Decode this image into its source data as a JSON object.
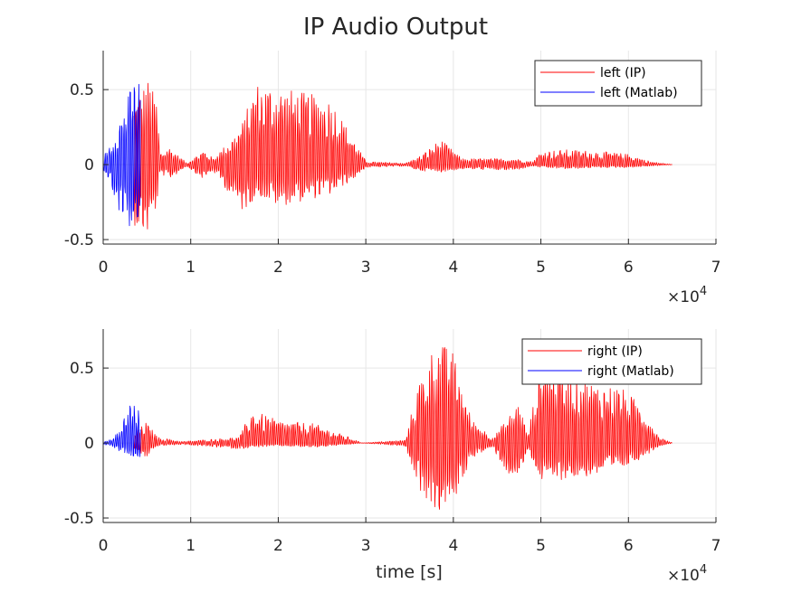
{
  "figure": {
    "title": "IP Audio Output",
    "background": "#ffffff"
  },
  "chart_data": [
    {
      "type": "line",
      "panel": "top",
      "title": "IP Audio Output",
      "xlabel": "",
      "ylabel": "",
      "xlim": [
        0,
        70000
      ],
      "ylim": [
        -0.53,
        0.76
      ],
      "x_ticks": [
        0,
        1,
        2,
        3,
        4,
        5,
        6,
        7
      ],
      "x_tick_labels": [
        "0",
        "1",
        "2",
        "3",
        "4",
        "5",
        "6",
        "7"
      ],
      "x_exponent_label": "×10",
      "x_exponent_power": "4",
      "y_ticks": [
        0.5,
        0,
        -0.5
      ],
      "y_tick_labels": [
        "0.5",
        "0",
        "-0.5"
      ],
      "grid": true,
      "legend_position": "top-right",
      "series": [
        {
          "name": "left (IP)",
          "color": "#ff0000",
          "x_range": [
            3500,
            65000
          ],
          "envelope": [
            {
              "x": 3500,
              "max": 0.42,
              "min": -0.4
            },
            {
              "x": 5000,
              "max": 0.58,
              "min": -0.48
            },
            {
              "x": 6000,
              "max": 0.45,
              "min": -0.3
            },
            {
              "x": 6500,
              "max": 0.08,
              "min": -0.06
            },
            {
              "x": 7500,
              "max": 0.12,
              "min": -0.1
            },
            {
              "x": 9500,
              "max": 0.01,
              "min": -0.01
            },
            {
              "x": 11500,
              "max": 0.1,
              "min": -0.1
            },
            {
              "x": 12500,
              "max": 0.04,
              "min": -0.04
            },
            {
              "x": 15000,
              "max": 0.2,
              "min": -0.24
            },
            {
              "x": 16000,
              "max": 0.3,
              "min": -0.32
            },
            {
              "x": 17500,
              "max": 0.55,
              "min": -0.2
            },
            {
              "x": 20000,
              "max": 0.52,
              "min": -0.28
            },
            {
              "x": 23000,
              "max": 0.48,
              "min": -0.24
            },
            {
              "x": 26000,
              "max": 0.44,
              "min": -0.2
            },
            {
              "x": 28500,
              "max": 0.18,
              "min": -0.1
            },
            {
              "x": 30000,
              "max": 0.02,
              "min": -0.02
            },
            {
              "x": 34500,
              "max": 0.01,
              "min": -0.01
            },
            {
              "x": 36000,
              "max": 0.05,
              "min": -0.04
            },
            {
              "x": 38500,
              "max": 0.17,
              "min": -0.05
            },
            {
              "x": 41000,
              "max": 0.04,
              "min": -0.03
            },
            {
              "x": 47000,
              "max": 0.04,
              "min": -0.04
            },
            {
              "x": 49000,
              "max": 0.02,
              "min": -0.01
            },
            {
              "x": 50000,
              "max": 0.09,
              "min": -0.02
            },
            {
              "x": 53000,
              "max": 0.1,
              "min": -0.03
            },
            {
              "x": 56500,
              "max": 0.09,
              "min": -0.02
            },
            {
              "x": 60000,
              "max": 0.07,
              "min": -0.02
            },
            {
              "x": 62500,
              "max": 0.02,
              "min": -0.01
            },
            {
              "x": 65000,
              "max": 0.0,
              "min": 0.0
            }
          ]
        },
        {
          "name": "left (Matlab)",
          "color": "#0000ff",
          "x_range": [
            0,
            4200
          ],
          "envelope": [
            {
              "x": 0,
              "max": 0.05,
              "min": -0.05
            },
            {
              "x": 800,
              "max": 0.15,
              "min": -0.12
            },
            {
              "x": 1500,
              "max": 0.25,
              "min": -0.28
            },
            {
              "x": 2500,
              "max": 0.4,
              "min": -0.38
            },
            {
              "x": 3300,
              "max": 0.55,
              "min": -0.45
            },
            {
              "x": 4000,
              "max": 0.58,
              "min": -0.42
            }
          ]
        }
      ]
    },
    {
      "type": "line",
      "panel": "bottom",
      "xlabel": "time [s]",
      "ylabel": "",
      "xlim": [
        0,
        70000
      ],
      "ylim": [
        -0.53,
        0.76
      ],
      "x_ticks": [
        0,
        1,
        2,
        3,
        4,
        5,
        6,
        7
      ],
      "x_tick_labels": [
        "0",
        "1",
        "2",
        "3",
        "4",
        "5",
        "6",
        "7"
      ],
      "x_exponent_label": "×10",
      "x_exponent_power": "4",
      "y_ticks": [
        0.5,
        0,
        -0.5
      ],
      "y_tick_labels": [
        "0.5",
        "0",
        "-0.5"
      ],
      "grid": true,
      "legend_position": "top-right",
      "series": [
        {
          "name": "right (IP)",
          "color": "#ff0000",
          "x_range": [
            3500,
            65000
          ],
          "envelope": [
            {
              "x": 3500,
              "max": 0.06,
              "min": -0.04
            },
            {
              "x": 4800,
              "max": 0.14,
              "min": -0.1
            },
            {
              "x": 6200,
              "max": 0.04,
              "min": -0.02
            },
            {
              "x": 9000,
              "max": 0.01,
              "min": -0.01
            },
            {
              "x": 15500,
              "max": 0.04,
              "min": -0.04
            },
            {
              "x": 17000,
              "max": 0.22,
              "min": -0.03
            },
            {
              "x": 20000,
              "max": 0.15,
              "min": -0.02
            },
            {
              "x": 24000,
              "max": 0.13,
              "min": -0.03
            },
            {
              "x": 28000,
              "max": 0.04,
              "min": -0.01
            },
            {
              "x": 29500,
              "max": 0.0,
              "min": 0.0
            },
            {
              "x": 34500,
              "max": 0.02,
              "min": -0.02
            },
            {
              "x": 36000,
              "max": 0.4,
              "min": -0.3
            },
            {
              "x": 38000,
              "max": 0.7,
              "min": -0.48
            },
            {
              "x": 40000,
              "max": 0.6,
              "min": -0.4
            },
            {
              "x": 42000,
              "max": 0.16,
              "min": -0.1
            },
            {
              "x": 44500,
              "max": 0.04,
              "min": -0.03
            },
            {
              "x": 46000,
              "max": 0.15,
              "min": -0.2
            },
            {
              "x": 47500,
              "max": 0.28,
              "min": -0.24
            },
            {
              "x": 48500,
              "max": 0.05,
              "min": -0.04
            },
            {
              "x": 50000,
              "max": 0.55,
              "min": -0.26
            },
            {
              "x": 53000,
              "max": 0.48,
              "min": -0.24
            },
            {
              "x": 56000,
              "max": 0.4,
              "min": -0.22
            },
            {
              "x": 59000,
              "max": 0.38,
              "min": -0.18
            },
            {
              "x": 61500,
              "max": 0.25,
              "min": -0.1
            },
            {
              "x": 63500,
              "max": 0.04,
              "min": -0.02
            },
            {
              "x": 65000,
              "max": 0.0,
              "min": 0.0
            }
          ]
        },
        {
          "name": "right (Matlab)",
          "color": "#0000ff",
          "x_range": [
            0,
            4200
          ],
          "envelope": [
            {
              "x": 0,
              "max": 0.01,
              "min": -0.01
            },
            {
              "x": 1000,
              "max": 0.03,
              "min": -0.02
            },
            {
              "x": 2000,
              "max": 0.1,
              "min": -0.06
            },
            {
              "x": 3000,
              "max": 0.3,
              "min": -0.08
            },
            {
              "x": 4000,
              "max": 0.22,
              "min": -0.1
            }
          ]
        }
      ]
    }
  ]
}
